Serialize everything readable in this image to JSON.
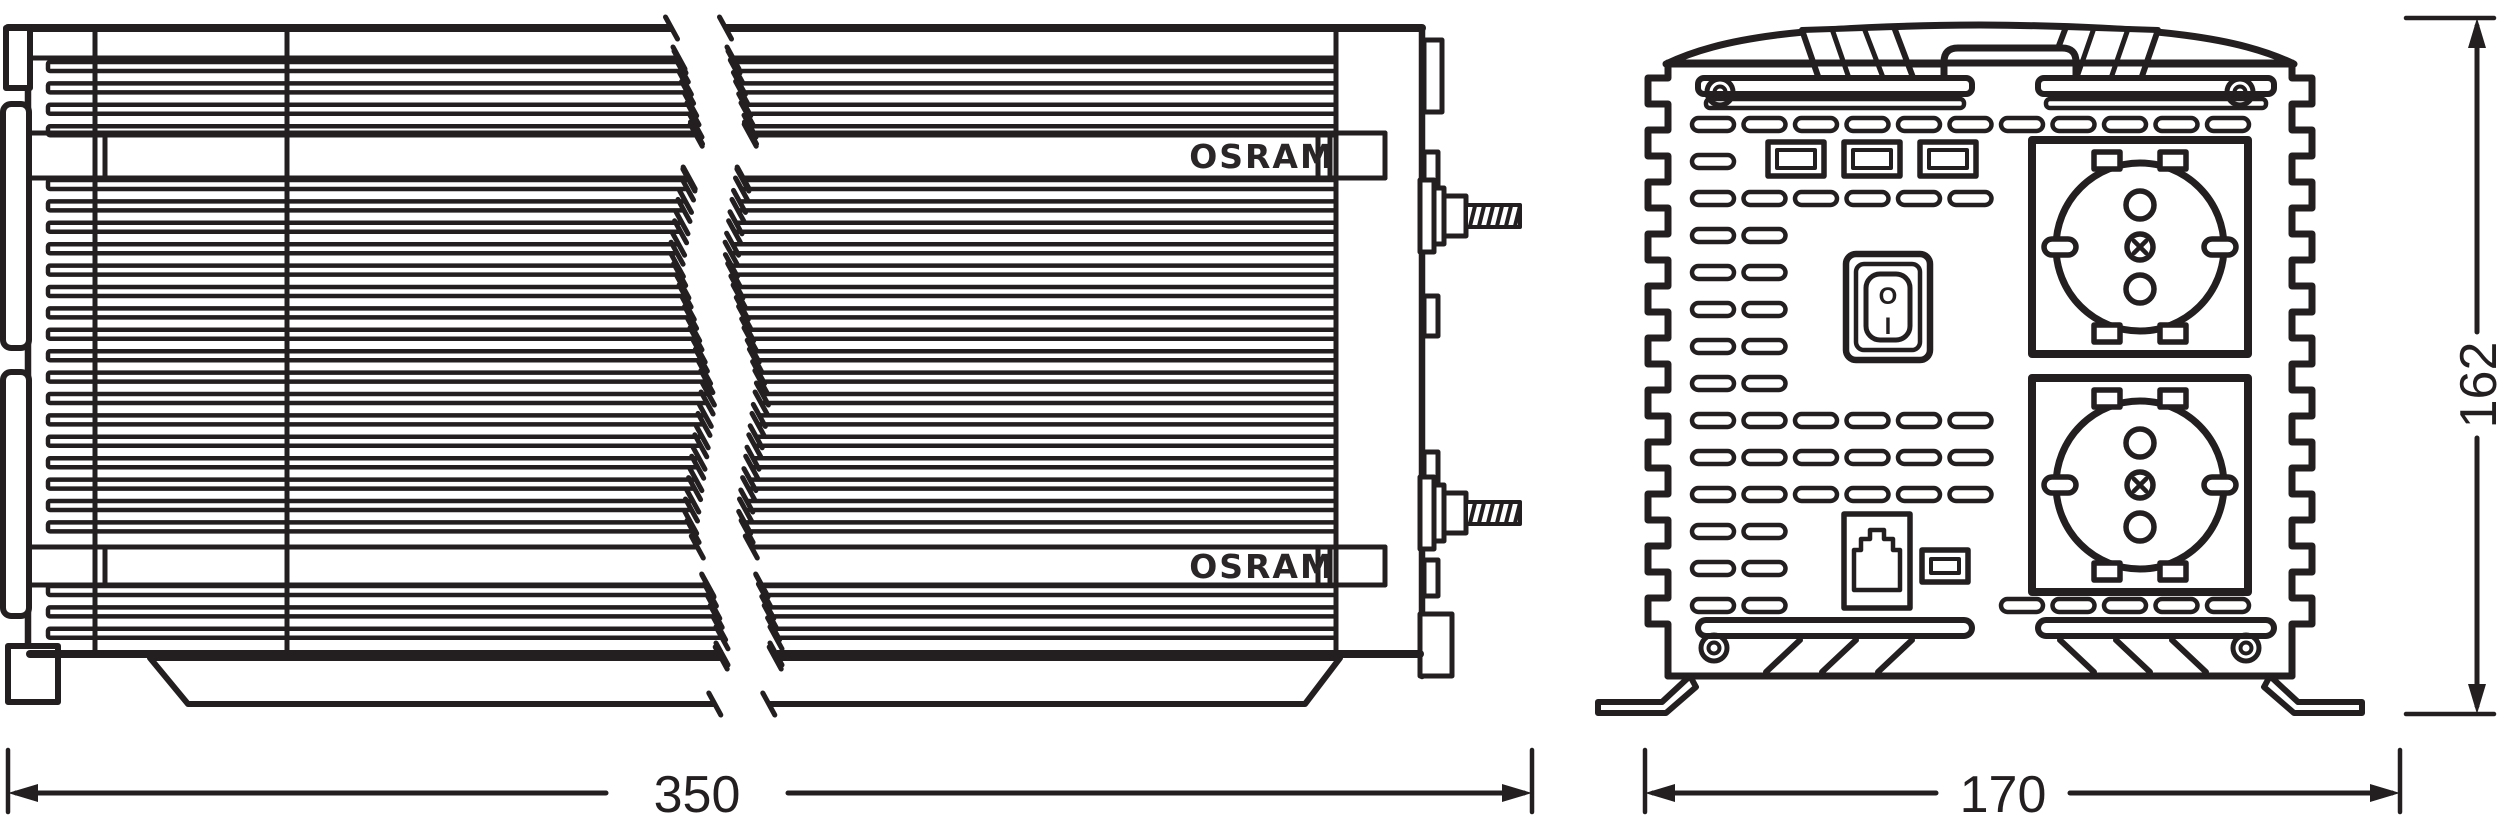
{
  "page": {
    "background": "#ffffff"
  },
  "drawing": {
    "type": "technical-dimension-drawing",
    "line_color": "#231f20",
    "views": {
      "side_view": {
        "brand_labels": [
          "OSRAM",
          "OSRAM"
        ],
        "width_dim_label": "350"
      },
      "front_view": {
        "width_dim_label": "170",
        "height_dim_label": "162",
        "switch_labels": {
          "off": "O",
          "on": "I"
        }
      }
    }
  }
}
